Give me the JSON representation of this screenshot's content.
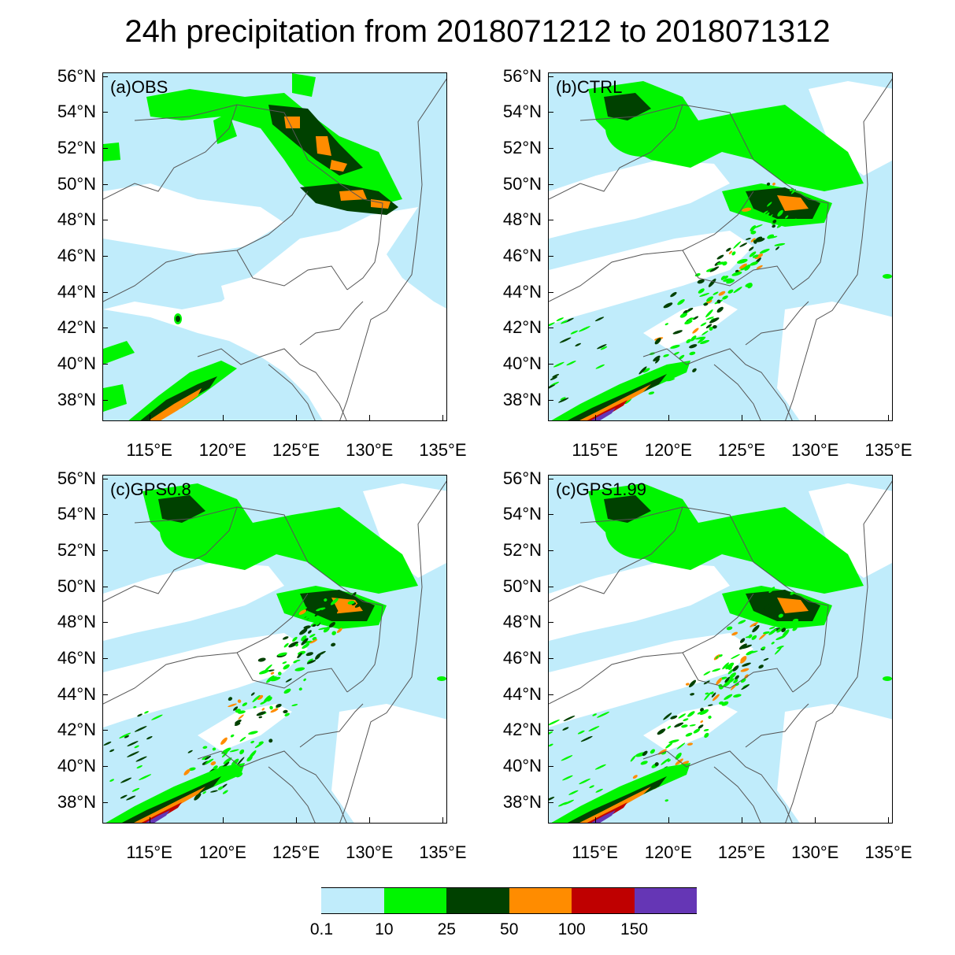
{
  "title": "24h precipitation from 2018071212 to 2018071312",
  "panels": [
    {
      "label": "(a)OBS"
    },
    {
      "label": "(b)CTRL"
    },
    {
      "label": "(c)GPS0.8"
    },
    {
      "label": "(c)GPS1.99"
    }
  ],
  "lat_labels": [
    "56°N",
    "54°N",
    "52°N",
    "50°N",
    "48°N",
    "46°N",
    "44°N",
    "42°N",
    "40°N",
    "38°N"
  ],
  "lon_labels": [
    "115°E",
    "120°E",
    "125°E",
    "130°E",
    "135°E"
  ],
  "colorbar": {
    "labels": [
      "0.1",
      "10",
      "25",
      "50",
      "100",
      "150"
    ],
    "colors": [
      "#ffffff",
      "#c0ecfb",
      "#00f500",
      "#004100",
      "#ff8c00",
      "#bf0000",
      "#6536b5"
    ]
  },
  "colors": {
    "land": "#ffffff",
    "light": "#c0ecfb",
    "green": "#00f500",
    "darkgreen": "#004100",
    "orange": "#ff8c00",
    "red": "#bf0000",
    "purple": "#6536b5",
    "boundary": "#555555"
  }
}
